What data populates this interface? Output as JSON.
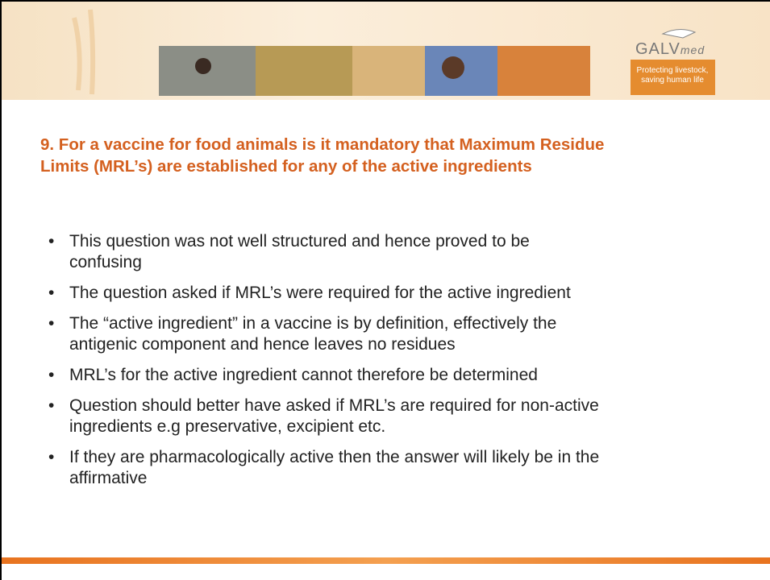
{
  "header": {
    "logo_main": "GALV",
    "logo_suffix": "med",
    "tagline": [
      "Protecting livestock,",
      "saving human life"
    ]
  },
  "title_lines": [
    "9. For a vaccine for food animals is it mandatory that Maximum Residue",
    "Limits (MRL’s) are established for any of the active ingredients"
  ],
  "bullets": [
    [
      "This question was not well structured and hence proved to be",
      "confusing"
    ],
    [
      "The question asked if MRL’s were required for the active ingredient"
    ],
    [
      "The “active ingredient” in a vaccine is by definition, effectively the",
      "antigenic component  and hence leaves no residues"
    ],
    [
      "MRL’s for the active ingredient cannot therefore be determined"
    ],
    [
      "Question should better have asked if MRL’s are required for non-active",
      "ingredients e.g preservative, excipient  etc."
    ],
    [
      "If they are pharmacologically active then the answer will likely be in the",
      "affirmative"
    ]
  ]
}
